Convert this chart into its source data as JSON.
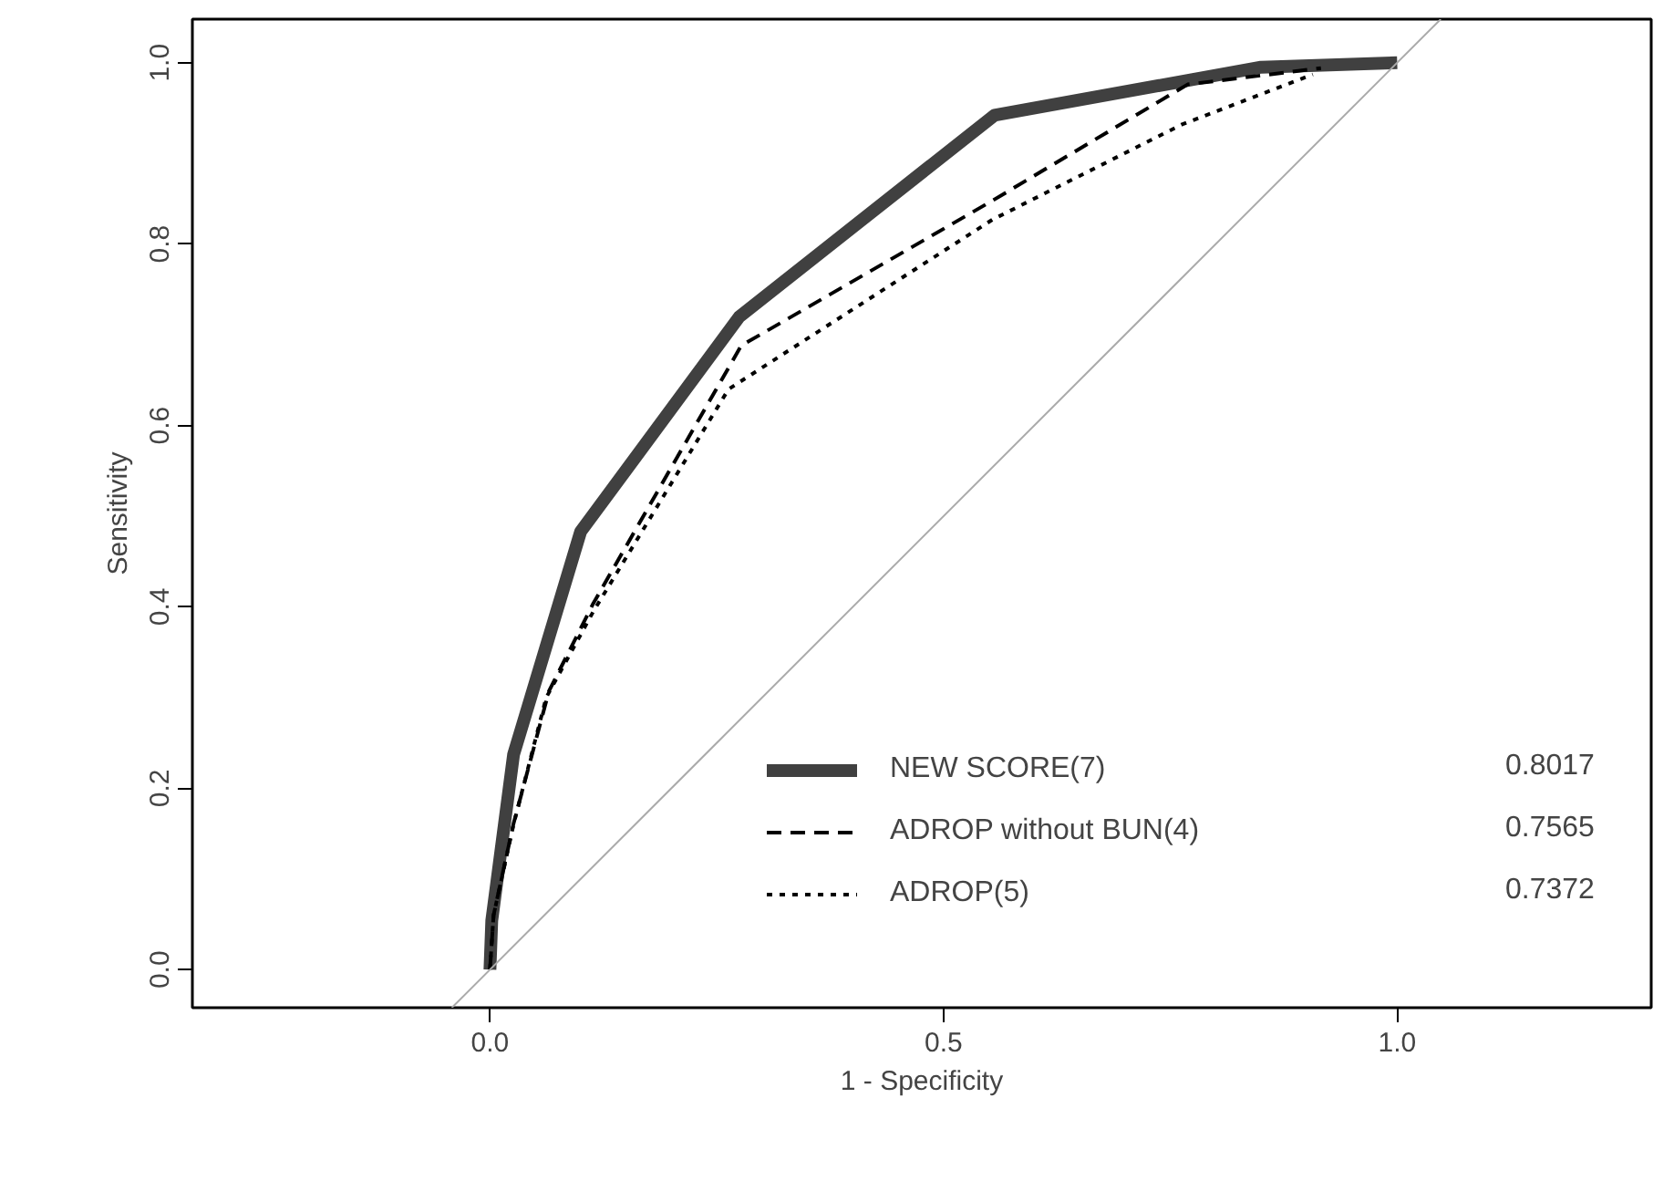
{
  "chart_data": {
    "type": "line",
    "xlabel": "1 - Specificity",
    "ylabel": "Sensitivity",
    "series": [
      {
        "name": "NEW SCORE(7)",
        "color": "#404040",
        "line_style": "solid",
        "x": [
          0,
          0.002,
          0.026,
          0.1,
          0.275,
          0.556,
          0.85,
          1.0
        ],
        "values": [
          0,
          0.054,
          0.237,
          0.483,
          0.72,
          0.942,
          0.995,
          1.0
        ]
      },
      {
        "name": "ADROP without BUN(4)",
        "color": "#000000",
        "line_style": "dashed",
        "x": [
          0,
          0.004,
          0.026,
          0.065,
          0.114,
          0.277,
          0.554,
          0.769,
          0.916
        ],
        "values": [
          0,
          0.06,
          0.161,
          0.307,
          0.404,
          0.688,
          0.848,
          0.976,
          0.994
        ]
      },
      {
        "name": "ADROP(5)",
        "color": "#000000",
        "line_style": "dotted",
        "x": [
          0,
          0.004,
          0.026,
          0.062,
          0.114,
          0.263,
          0.554,
          0.763,
          0.907
        ],
        "values": [
          0,
          0.06,
          0.16,
          0.3,
          0.395,
          0.64,
          0.827,
          0.932,
          0.987
        ]
      },
      {
        "color": "#aaaaaa",
        "line_style": "solid",
        "x": [
          -0.042,
          1.048
        ],
        "values": [
          -0.042,
          1.048
        ]
      }
    ],
    "annotations": [
      "0.8017",
      "0.7565",
      "0.7372"
    ],
    "xlim": [
      -0.328,
      1.28
    ],
    "ylim": [
      -0.042,
      1.048
    ],
    "xticks": [
      {
        "value": 0,
        "label": "0.0"
      },
      {
        "value": 0.5,
        "label": "0.5"
      },
      {
        "value": 1,
        "label": "1.0"
      }
    ],
    "yticks": [
      {
        "value": 0,
        "label": "0.0"
      },
      {
        "value": 0.2,
        "label": "0.2"
      },
      {
        "value": 0.4,
        "label": "0.4"
      },
      {
        "value": 0.6,
        "label": "0.6"
      },
      {
        "value": 0.8,
        "label": "0.8"
      },
      {
        "value": 1,
        "label": "1.0"
      }
    ],
    "grid": false,
    "legend": "bottom right"
  }
}
